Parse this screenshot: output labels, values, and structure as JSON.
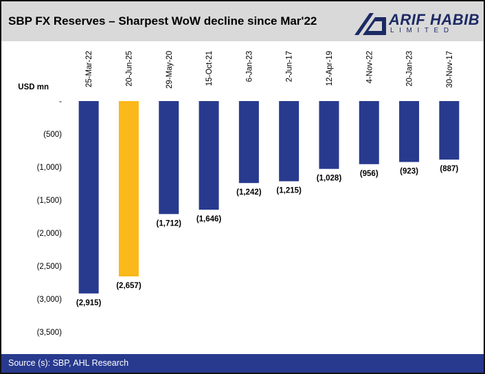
{
  "header": {
    "title": "SBP FX Reserves – Sharpest WoW decline since Mar'22"
  },
  "logo": {
    "name": "ARIF HABIB",
    "sub": "LIMITED",
    "color": "#1c2a64"
  },
  "footer": {
    "source": "Source (s): SBP, AHL Research"
  },
  "colors": {
    "bar": "#283a8e",
    "highlight": "#fbb81b",
    "header_bg": "#d9d9d9",
    "footer_bg": "#283a8e"
  },
  "chart_data": {
    "type": "bar",
    "ylabel": "USD mn",
    "xlabel": "",
    "ylim": [
      -3500,
      0
    ],
    "yticks": [
      0,
      -500,
      -1000,
      -1500,
      -2000,
      -2500,
      -3000,
      -3500
    ],
    "ytick_labels": [
      "-",
      "(500)",
      "(1,000)",
      "(1,500)",
      "(2,000)",
      "(2,500)",
      "(3,000)",
      "(3,500)"
    ],
    "categories": [
      "25-Mar-22",
      "20-Jun-25",
      "29-May-20",
      "15-Oct-21",
      "6-Jan-23",
      "2-Jun-17",
      "12-Apr-19",
      "4-Nov-22",
      "20-Jan-23",
      "30-Nov-17"
    ],
    "values": [
      -2915,
      -2657,
      -1712,
      -1646,
      -1242,
      -1215,
      -1028,
      -956,
      -923,
      -887
    ],
    "data_labels": [
      "(2,915)",
      "(2,657)",
      "(1,712)",
      "(1,646)",
      "(1,242)",
      "(1,215)",
      "(1,028)",
      "(956)",
      "(923)",
      "(887)"
    ],
    "highlight_index": 1,
    "grid": false,
    "category_axis_position": "top",
    "category_label_rotation": "vertical"
  }
}
